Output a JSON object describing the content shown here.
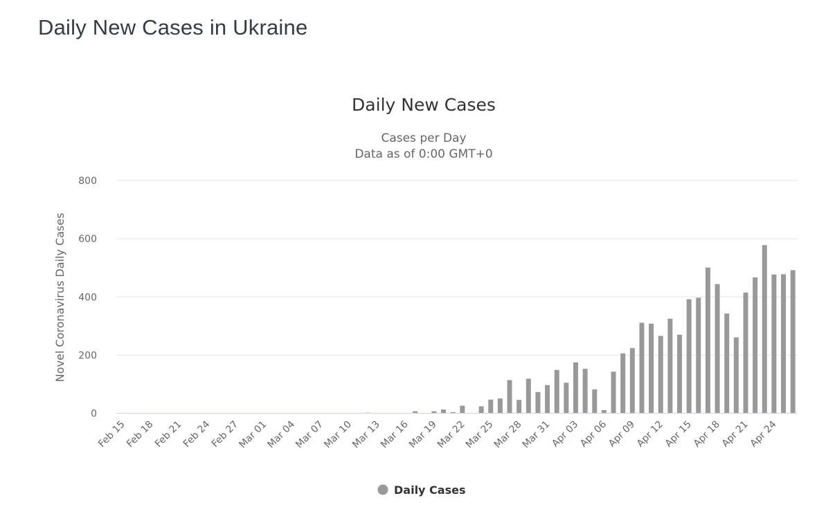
{
  "page": {
    "title": "Daily New Cases in Ukraine"
  },
  "chart_data": {
    "type": "bar",
    "title": "Daily New Cases",
    "subtitle_line1": "Cases per Day",
    "subtitle_line2": "Data as of 0:00 GMT+0",
    "ylabel": "Novel Coronavirus Daily Cases",
    "xlabel": "",
    "legend": "Daily Cases",
    "legend_position": "bottom-center",
    "grid": "horizontal",
    "ylim": [
      0,
      800
    ],
    "yticks": [
      0,
      200,
      400,
      600,
      800
    ],
    "xtick_interval": 3,
    "categories": [
      "Feb 15",
      "Feb 16",
      "Feb 17",
      "Feb 18",
      "Feb 19",
      "Feb 20",
      "Feb 21",
      "Feb 22",
      "Feb 23",
      "Feb 24",
      "Feb 25",
      "Feb 26",
      "Feb 27",
      "Feb 28",
      "Feb 29",
      "Mar 01",
      "Mar 02",
      "Mar 03",
      "Mar 04",
      "Mar 05",
      "Mar 06",
      "Mar 07",
      "Mar 08",
      "Mar 09",
      "Mar 10",
      "Mar 11",
      "Mar 12",
      "Mar 13",
      "Mar 14",
      "Mar 15",
      "Mar 16",
      "Mar 17",
      "Mar 18",
      "Mar 19",
      "Mar 20",
      "Mar 21",
      "Mar 22",
      "Mar 23",
      "Mar 24",
      "Mar 25",
      "Mar 26",
      "Mar 27",
      "Mar 28",
      "Mar 29",
      "Mar 30",
      "Mar 31",
      "Apr 01",
      "Apr 02",
      "Apr 03",
      "Apr 04",
      "Apr 05",
      "Apr 06",
      "Apr 07",
      "Apr 08",
      "Apr 09",
      "Apr 10",
      "Apr 11",
      "Apr 12",
      "Apr 13",
      "Apr 14",
      "Apr 15",
      "Apr 16",
      "Apr 17",
      "Apr 18",
      "Apr 19",
      "Apr 20",
      "Apr 21",
      "Apr 22",
      "Apr 23",
      "Apr 24",
      "Apr 25",
      "Apr 26"
    ],
    "values": [
      0,
      0,
      0,
      0,
      0,
      0,
      0,
      0,
      0,
      0,
      0,
      0,
      0,
      0,
      0,
      0,
      0,
      1,
      0,
      0,
      0,
      0,
      0,
      0,
      0,
      0,
      2,
      0,
      0,
      0,
      0,
      7,
      0,
      7,
      13,
      4,
      26,
      0,
      24,
      47,
      51,
      114,
      46,
      119,
      73,
      97,
      149,
      105,
      175,
      153,
      82,
      11,
      143,
      206,
      224,
      311,
      308,
      266,
      325,
      270,
      392,
      397,
      501,
      444,
      343,
      261,
      415,
      467,
      578,
      477,
      478,
      492
    ],
    "series_name": "Daily Cases"
  },
  "colors": {
    "bar": "#999999",
    "grid": "#e6e6e6",
    "axis_line": "#ccd6eb",
    "tick_label": "#666666",
    "chart_title": "#333333",
    "subtitle": "#666666",
    "page_title": "#343c46",
    "legend_text": "#333333",
    "legend_marker": "#999999",
    "background": "#ffffff"
  }
}
